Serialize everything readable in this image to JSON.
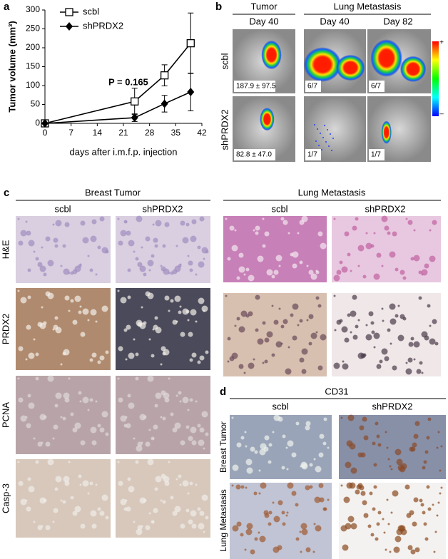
{
  "chart_data": {
    "type": "line",
    "x_label": "days after i.m.f.p. injection",
    "y_label": "Tumor volume (mm³)",
    "annotation": "P = 0.165",
    "x": [
      0,
      24,
      32,
      39
    ],
    "series": [
      {
        "name": "scbl",
        "color": "#000000",
        "marker": "open-square",
        "values": [
          0,
          58,
          127,
          212
        ],
        "errors": [
          0,
          35,
          28,
          80
        ]
      },
      {
        "name": "shPRDX2",
        "color": "#000000",
        "marker": "filled-diamond",
        "values": [
          0,
          15,
          52,
          83
        ],
        "errors": [
          0,
          10,
          22,
          50
        ]
      }
    ],
    "xlim": [
      0,
      42
    ],
    "xticks": [
      0,
      7,
      14,
      21,
      28,
      35,
      42
    ],
    "ylim": [
      0,
      300
    ],
    "yticks": [
      0,
      50,
      100,
      150,
      200,
      250,
      300
    ],
    "legend": "upper left",
    "grid": false
  },
  "panel_labels": [
    "a",
    "b",
    "c",
    "d"
  ],
  "panel_b": {
    "columns": [
      "Tumor",
      "Lung Metastasis"
    ],
    "days": [
      "Day 40",
      "Day 40",
      "Day 82"
    ],
    "rows": [
      "scbl",
      "shPRDX2"
    ],
    "image_labels": [
      [
        "187.9 ± 97.5",
        "6/7",
        "6/7"
      ],
      [
        "82.8 ± 47.0",
        "1/7",
        "1/7"
      ]
    ],
    "colorbar": [
      "+",
      "–"
    ]
  },
  "panel_c": {
    "groups": [
      "Breast Tumor",
      "Lung Metastasis"
    ],
    "columns": [
      "scbl",
      "shPRDX2",
      "scbl",
      "shPRDX2"
    ],
    "rows": [
      "H&E",
      "PRDX2",
      "PCNA",
      "Casp-3"
    ]
  },
  "panel_d": {
    "title": "CD31",
    "columns": [
      "scbl",
      "shPRDX2"
    ],
    "rows": [
      "Breast Tumor",
      "Lung Metastasis"
    ]
  }
}
